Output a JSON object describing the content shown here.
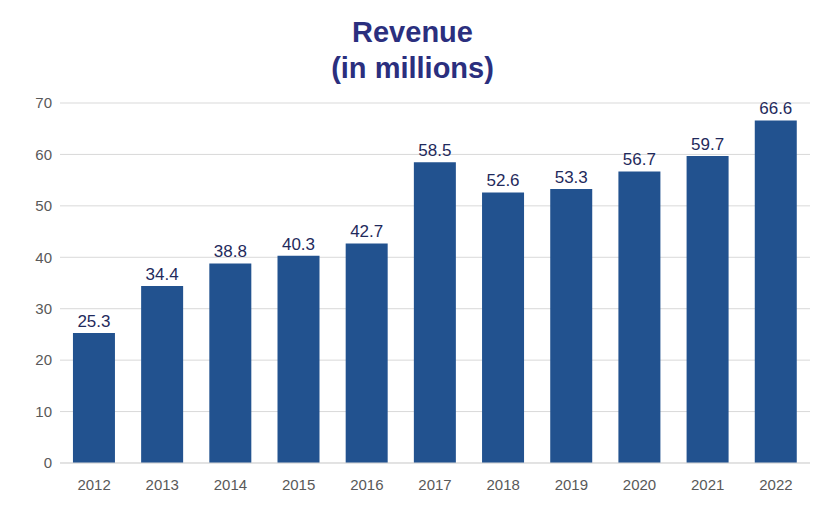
{
  "chart_data": {
    "type": "bar",
    "title": "Revenue",
    "subtitle": "(in millions)",
    "categories": [
      "2012",
      "2013",
      "2014",
      "2015",
      "2016",
      "2017",
      "2018",
      "2019",
      "2020",
      "2021",
      "2022"
    ],
    "values": [
      25.3,
      34.4,
      38.8,
      40.3,
      42.7,
      58.5,
      52.6,
      53.3,
      56.7,
      59.7,
      66.6
    ],
    "color": "#22528f",
    "ylim": [
      0,
      70
    ],
    "yticks": [
      0,
      10,
      20,
      30,
      40,
      50,
      60,
      70
    ],
    "grid": true,
    "data_labels": true
  }
}
